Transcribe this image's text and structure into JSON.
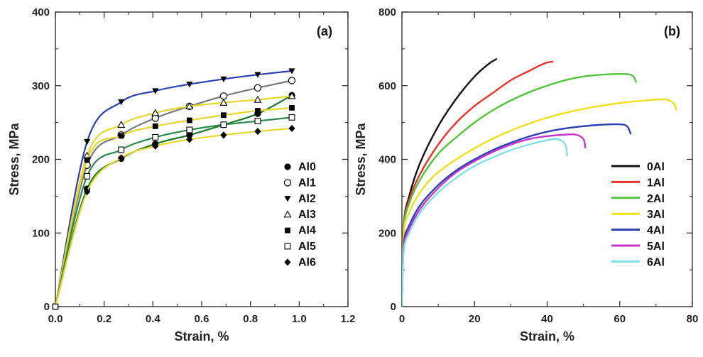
{
  "chart_data": [
    {
      "type": "line",
      "panel_label": "(a)",
      "xlabel": "Strain, %",
      "ylabel": "Stress, MPa",
      "xlim": [
        0.0,
        1.2
      ],
      "ylim": [
        0,
        400
      ],
      "xticks": [
        "0.0",
        "0.2",
        "0.4",
        "0.6",
        "0.8",
        "1.0",
        "1.2"
      ],
      "yticks": [
        "0",
        "100",
        "200",
        "300",
        "400"
      ],
      "grid": false,
      "legend_position": "lower-right",
      "series": [
        {
          "name": "Al0",
          "marker": "filled-circle",
          "color": "#1a7a2a",
          "x": [
            0,
            0.13,
            0.27,
            0.41,
            0.55,
            0.69,
            0.83,
            0.97
          ],
          "y": [
            0,
            160,
            201,
            221,
            233,
            247,
            262,
            287
          ]
        },
        {
          "name": "Al1",
          "marker": "open-circle",
          "color": "#7a7a7a",
          "x": [
            0,
            0.13,
            0.27,
            0.41,
            0.55,
            0.69,
            0.83,
            0.97
          ],
          "y": [
            0,
            192,
            233,
            256,
            272,
            286,
            297,
            307
          ]
        },
        {
          "name": "Al2",
          "marker": "filled-triangle-down",
          "color": "#2b3fb5",
          "x": [
            0,
            0.13,
            0.27,
            0.41,
            0.55,
            0.69,
            0.83,
            0.97
          ],
          "y": [
            0,
            224,
            278,
            293,
            302,
            309,
            315,
            320
          ]
        },
        {
          "name": "Al3",
          "marker": "open-triangle-up",
          "color": "#e8d62a",
          "x": [
            0,
            0.13,
            0.27,
            0.41,
            0.55,
            0.69,
            0.83,
            0.97
          ],
          "y": [
            0,
            205,
            247,
            263,
            272,
            277,
            281,
            286
          ]
        },
        {
          "name": "Al4",
          "marker": "filled-square",
          "color": "#e8d62a",
          "x": [
            0,
            0.13,
            0.27,
            0.41,
            0.55,
            0.69,
            0.83,
            0.97
          ],
          "y": [
            0,
            199,
            232,
            245,
            253,
            260,
            266,
            270
          ]
        },
        {
          "name": "Al5",
          "marker": "open-square",
          "color": "#2a8a4a",
          "x": [
            0,
            0.13,
            0.27,
            0.41,
            0.55,
            0.69,
            0.83,
            0.97
          ],
          "y": [
            0,
            177,
            213,
            230,
            240,
            247,
            252,
            257
          ]
        },
        {
          "name": "Al6",
          "marker": "filled-diamond",
          "color": "#e8d62a",
          "x": [
            0,
            0.13,
            0.27,
            0.41,
            0.55,
            0.69,
            0.83,
            0.97
          ],
          "y": [
            0,
            156,
            202,
            218,
            227,
            233,
            238,
            242
          ]
        }
      ]
    },
    {
      "type": "line",
      "panel_label": "(b)",
      "xlabel": "Strain, %",
      "ylabel": "Stress, MPa",
      "xlim": [
        0,
        80
      ],
      "ylim": [
        0,
        800
      ],
      "xticks": [
        "0",
        "20",
        "40",
        "60",
        "80"
      ],
      "yticks": [
        "0",
        "200",
        "400",
        "600",
        "800"
      ],
      "grid": false,
      "legend_position": "lower-right",
      "series": [
        {
          "name": "0Al",
          "color": "#111111",
          "x": [
            0,
            0.5,
            2,
            5,
            10,
            15,
            20,
            24,
            26
          ],
          "y": [
            0,
            220,
            300,
            390,
            490,
            565,
            625,
            660,
            672
          ]
        },
        {
          "name": "1Al",
          "color": "#e8322a",
          "x": [
            0,
            0.5,
            2,
            5,
            10,
            15,
            20,
            25,
            30,
            35,
            38,
            40,
            41.5
          ],
          "y": [
            0,
            215,
            290,
            360,
            440,
            500,
            545,
            580,
            615,
            640,
            655,
            663,
            665
          ]
        },
        {
          "name": "2Al",
          "color": "#52c43a",
          "x": [
            0,
            0.5,
            2,
            5,
            10,
            15,
            20,
            25,
            30,
            35,
            40,
            45,
            50,
            55,
            60,
            63,
            64,
            64.5
          ],
          "y": [
            0,
            210,
            280,
            345,
            415,
            460,
            500,
            533,
            560,
            582,
            600,
            615,
            625,
            630,
            632,
            630,
            622,
            610
          ]
        },
        {
          "name": "3Al",
          "color": "#f0e01c",
          "x": [
            0,
            0.5,
            2,
            5,
            10,
            20,
            30,
            40,
            50,
            60,
            65,
            70,
            73,
            75,
            75.5
          ],
          "y": [
            0,
            200,
            255,
            310,
            365,
            430,
            478,
            513,
            537,
            553,
            558,
            562,
            562,
            550,
            535
          ]
        },
        {
          "name": "4Al",
          "color": "#2b3fb5",
          "x": [
            0,
            0.5,
            2,
            5,
            10,
            15,
            20,
            25,
            30,
            35,
            40,
            45,
            50,
            55,
            60,
            62,
            63
          ],
          "y": [
            0,
            170,
            220,
            275,
            330,
            370,
            400,
            425,
            445,
            462,
            475,
            484,
            490,
            494,
            495,
            490,
            470
          ]
        },
        {
          "name": "5Al",
          "color": "#c437c8",
          "x": [
            0,
            0.5,
            2,
            5,
            10,
            15,
            20,
            25,
            30,
            35,
            40,
            45,
            48,
            50,
            50.5
          ],
          "y": [
            0,
            160,
            210,
            265,
            322,
            365,
            395,
            420,
            440,
            455,
            463,
            467,
            467,
            455,
            432
          ]
        },
        {
          "name": "6Al",
          "color": "#7fe0e0",
          "x": [
            0,
            0.5,
            2,
            5,
            10,
            15,
            20,
            25,
            30,
            35,
            40,
            43,
            45,
            45.5
          ],
          "y": [
            0,
            150,
            200,
            255,
            310,
            350,
            382,
            405,
            425,
            440,
            452,
            455,
            440,
            410
          ]
        }
      ]
    }
  ]
}
